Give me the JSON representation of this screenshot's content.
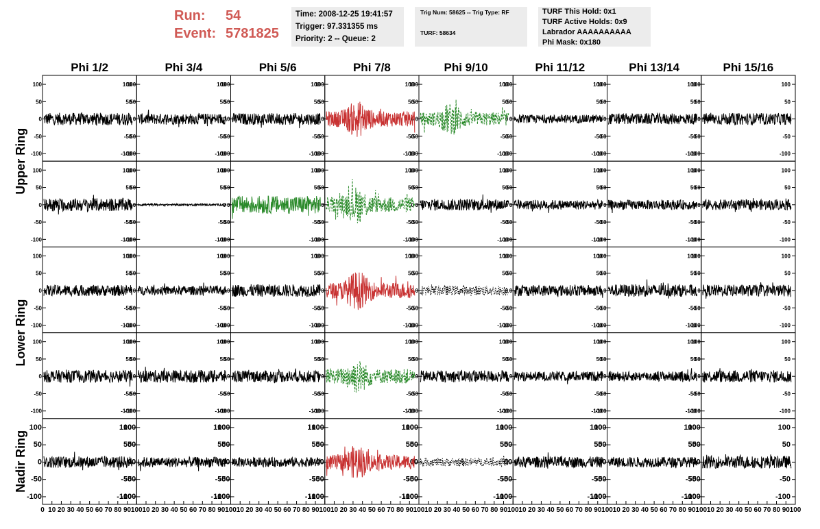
{
  "header": {
    "run_label": "Run:",
    "run_value": "54",
    "event_label": "Event:",
    "event_value": "5781825",
    "time_line": "Time: 2008-12-25 19:41:57",
    "trigger_line": "Trigger: 97.331355 ms",
    "priority_line": "Priority: 2 -- Queue: 2",
    "trig_num_line": "Trig Num: 58625 -- Trig Type: RF",
    "turf_line": "TURF: 58634",
    "turf_hold_line": "TURF This Hold: 0x1",
    "turf_active_line": "TURF Active Holds: 0x9",
    "labrador_line": "Labrador AAAAAAAAAA",
    "phi_mask_line": "Phi Mask: 0x180"
  },
  "colors": {
    "normal": "#000000",
    "triggered": "#c83232",
    "masked": "#2a8a2a",
    "header_red": "#d05a55",
    "info_bg": "#ececec"
  },
  "chart_data": {
    "type": "line",
    "columns": [
      "Phi 1/2",
      "Phi 3/4",
      "Phi 5/6",
      "Phi 7/8",
      "Phi 9/10",
      "Phi 11/12",
      "Phi 13/14",
      "Phi 15/16"
    ],
    "ring_labels": [
      "Upper Ring",
      "Lower Ring",
      "Nadir Ring"
    ],
    "rows": 5,
    "ylim": [
      -110,
      110
    ],
    "yticks": [
      "100",
      "50",
      "0",
      "-50",
      "-100"
    ],
    "xlim": [
      0,
      100
    ],
    "xtick_labels": [
      "0",
      "10",
      "20",
      "30",
      "40",
      "50",
      "60",
      "70",
      "80",
      "90",
      "100"
    ],
    "waveform_samples": 260,
    "panels": [
      [
        {
          "style": "normal",
          "amp": 18
        },
        {
          "style": "normal",
          "amp": 16
        },
        {
          "style": "normal",
          "amp": 17
        },
        {
          "style": "triggered",
          "amp": 40,
          "burst": true
        },
        {
          "style": "masked-dashed",
          "amp": 35,
          "burst": true
        },
        {
          "style": "normal",
          "amp": 12
        },
        {
          "style": "normal",
          "amp": 16
        },
        {
          "style": "normal",
          "amp": 17
        }
      ],
      [
        {
          "style": "normal",
          "amp": 19
        },
        {
          "style": "normal",
          "amp": 3
        },
        {
          "style": "masked",
          "amp": 26
        },
        {
          "style": "masked-dashed",
          "amp": 40,
          "burst": true
        },
        {
          "style": "normal",
          "amp": 17
        },
        {
          "style": "normal",
          "amp": 14
        },
        {
          "style": "normal",
          "amp": 14
        },
        {
          "style": "normal",
          "amp": 15
        }
      ],
      [
        {
          "style": "normal",
          "amp": 16
        },
        {
          "style": "normal",
          "amp": 13
        },
        {
          "style": "normal",
          "amp": 18
        },
        {
          "style": "triggered",
          "amp": 42,
          "burst": true
        },
        {
          "style": "dotted",
          "amp": 14
        },
        {
          "style": "normal",
          "amp": 16
        },
        {
          "style": "normal",
          "amp": 18
        },
        {
          "style": "normal",
          "amp": 17
        }
      ],
      [
        {
          "style": "normal",
          "amp": 18
        },
        {
          "style": "normal",
          "amp": 18
        },
        {
          "style": "normal",
          "amp": 17
        },
        {
          "style": "masked-dashed",
          "amp": 38,
          "burst": true
        },
        {
          "style": "normal",
          "amp": 17
        },
        {
          "style": "normal",
          "amp": 14
        },
        {
          "style": "normal",
          "amp": 14
        },
        {
          "style": "normal",
          "amp": 18
        }
      ],
      [
        {
          "style": "normal",
          "amp": 17
        },
        {
          "style": "normal",
          "amp": 15
        },
        {
          "style": "normal",
          "amp": 14
        },
        {
          "style": "triggered",
          "amp": 38,
          "burst": true
        },
        {
          "style": "dotted",
          "amp": 12
        },
        {
          "style": "normal",
          "amp": 16
        },
        {
          "style": "normal",
          "amp": 15
        },
        {
          "style": "normal",
          "amp": 18
        }
      ]
    ]
  }
}
